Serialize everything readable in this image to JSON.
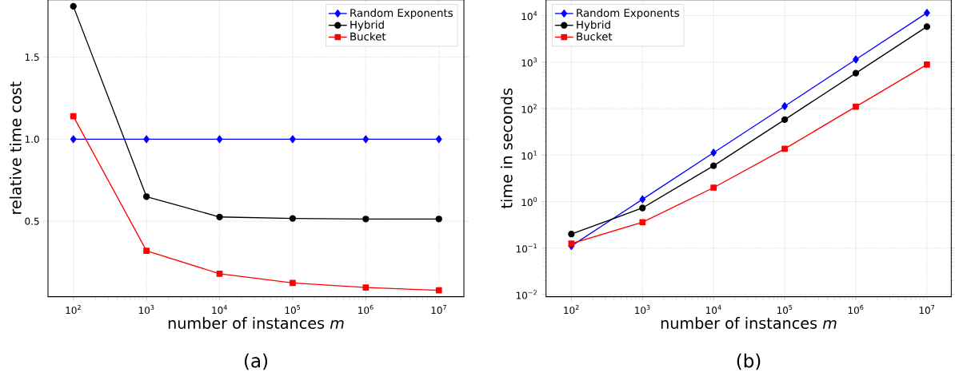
{
  "chart_data": [
    {
      "type": "line",
      "title": "(a)",
      "xlabel": "number of instances *m*",
      "ylabel": "relative time cost",
      "log": "x",
      "grid": true,
      "legend": "top right",
      "x": [
        100,
        1000,
        10000,
        100000,
        1000000,
        10000000
      ],
      "xlim": [
        45,
        22000000
      ],
      "ylim": [
        0.04,
        1.85
      ],
      "xticks": [
        {
          "value": 100,
          "label": "10$^{2}$"
        },
        {
          "value": 1000,
          "label": "10$^{3}$"
        },
        {
          "value": 10000,
          "label": "10$^{4}$"
        },
        {
          "value": 100000,
          "label": "10$^{5}$"
        },
        {
          "value": 1000000,
          "label": "10$^{6}$"
        },
        {
          "value": 10000000,
          "label": "10$^{7}$"
        }
      ],
      "yticks": [
        0.5,
        {
          "value": 1,
          "label": "1.0"
        },
        1.5
      ],
      "series": [
        {
          "name": "Random Exponents",
          "color": "#0000ff",
          "marker": "diamond",
          "values": [
            1,
            1,
            1,
            1,
            1,
            1
          ]
        },
        {
          "name": "Hybrid",
          "color": "#000000",
          "marker": "circle",
          "values": [
            1.81,
            0.65,
            0.526,
            0.517,
            0.513,
            0.513
          ]
        },
        {
          "name": "Bucket",
          "color": "#ff0000",
          "marker": "square",
          "values": [
            1.14,
            0.32,
            0.18,
            0.124,
            0.096,
            0.079
          ]
        }
      ]
    },
    {
      "type": "line",
      "title": "(b)",
      "xlabel": "number of instances *m*",
      "ylabel": "time in seconds",
      "log": "xy",
      "grid": true,
      "legend": "top left",
      "x": [
        100,
        1000,
        10000,
        100000,
        1000000,
        10000000
      ],
      "xlim": [
        44,
        22000000
      ],
      "ylim": [
        0.009,
        22000
      ],
      "xticks": [
        {
          "value": 100,
          "label": "10$^{2}$"
        },
        {
          "value": 1000,
          "label": "10$^{3}$"
        },
        {
          "value": 10000,
          "label": "10$^{4}$"
        },
        {
          "value": 100000,
          "label": "10$^{5}$"
        },
        {
          "value": 1000000,
          "label": "10$^{6}$"
        },
        {
          "value": 10000000,
          "label": "10$^{7}$"
        }
      ],
      "yticks": [
        {
          "value": 0.01,
          "label": "10$^{−2}$"
        },
        {
          "value": 0.1,
          "label": "10$^{−1}$"
        },
        {
          "value": 1,
          "label": "10$^{0}$"
        },
        {
          "value": 10,
          "label": "10$^{1}$"
        },
        {
          "value": 100,
          "label": "10$^{2}$"
        },
        {
          "value": 1000,
          "label": "10$^{3}$"
        },
        {
          "value": 10000,
          "label": "10$^{4}$"
        }
      ],
      "series": [
        {
          "name": "Random Exponents",
          "color": "#0000ff",
          "marker": "diamond",
          "values": [
            0.111,
            1.12,
            11.3,
            113,
            1140,
            11500
          ]
        },
        {
          "name": "Hybrid",
          "color": "#000000",
          "marker": "circle",
          "values": [
            0.2,
            0.73,
            5.9,
            58,
            580,
            5800
          ]
        },
        {
          "name": "Bucket",
          "color": "#ff0000",
          "marker": "square",
          "values": [
            0.125,
            0.36,
            2.0,
            13.7,
            110,
            886
          ]
        }
      ]
    }
  ]
}
